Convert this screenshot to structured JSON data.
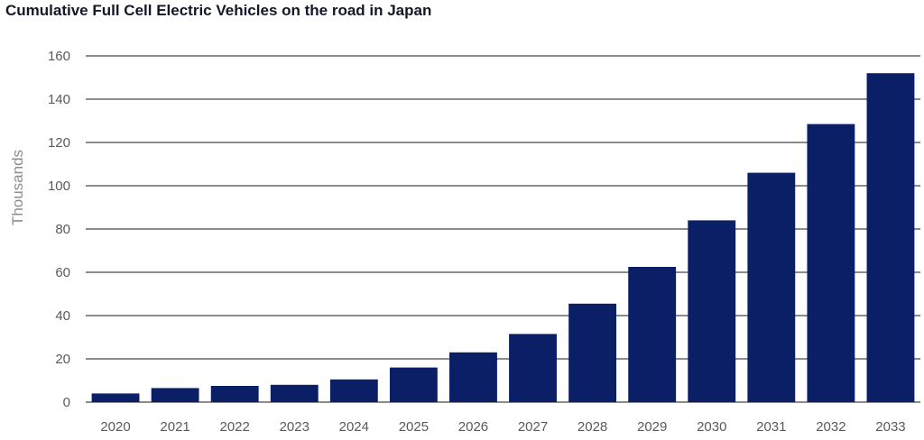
{
  "chart_data": {
    "type": "bar",
    "title": "Cumulative Full Cell Electric Vehicles on the road in Japan",
    "xlabel": "",
    "ylabel": "Thousands",
    "categories": [
      "2020",
      "2021",
      "2022",
      "2023",
      "2024",
      "2025",
      "2026",
      "2027",
      "2028",
      "2029",
      "2030",
      "2031",
      "2032",
      "2033"
    ],
    "values": [
      4,
      6.5,
      7.5,
      8,
      10.5,
      16,
      23,
      31.5,
      45.5,
      62.5,
      84,
      106,
      128.5,
      152
    ],
    "ylim": [
      0,
      160
    ],
    "yticks": [
      0,
      20,
      40,
      60,
      80,
      100,
      120,
      140,
      160
    ],
    "grid": true,
    "bar_color": "#0b1f66",
    "grid_color": "#8c8c8c"
  }
}
